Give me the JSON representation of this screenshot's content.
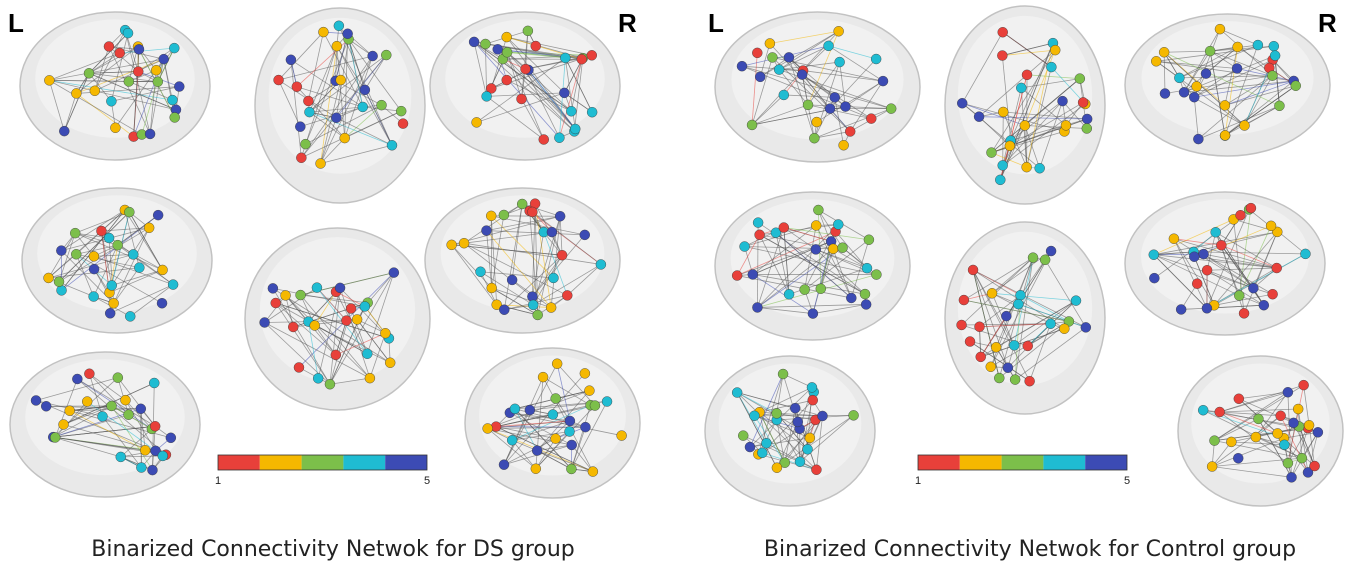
{
  "panels": [
    {
      "left_label": "L",
      "right_label": "R",
      "colorbar": {
        "min": 1,
        "max": 5,
        "colors": [
          "#e8403a",
          "#f5b800",
          "#7cbf4a",
          "#1fbcd2",
          "#3c4bb4"
        ]
      },
      "caption": "Binarized Connectivity Netwok for DS group"
    },
    {
      "left_label": "L",
      "right_label": "R",
      "colorbar": {
        "min": 1,
        "max": 5,
        "colors": [
          "#e8403a",
          "#f5b800",
          "#7cbf4a",
          "#1fbcd2",
          "#3c4bb4"
        ]
      },
      "caption": "Binarized Connectivity Netwok for Control group"
    }
  ]
}
